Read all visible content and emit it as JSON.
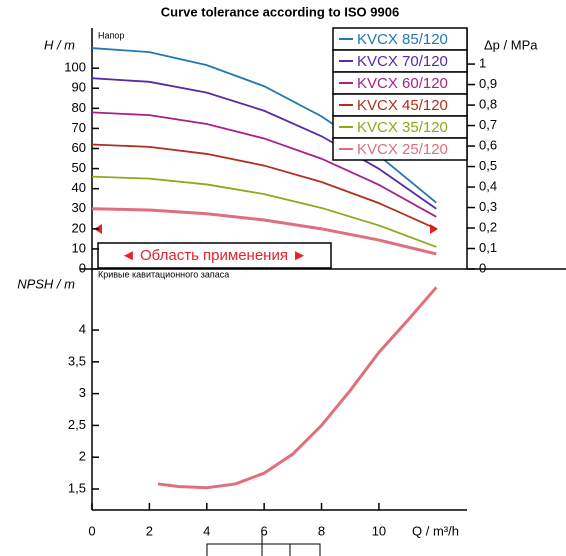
{
  "chart_data": [
    {
      "type": "line",
      "title": "Curve tolerance according to ISO 9906",
      "annotations": [
        "Напор",
        "◄ Область применения ►"
      ],
      "ylabel": "H / m",
      "y2label": "Δp / MPa",
      "legend": "upper right",
      "xlim": [
        0,
        13
      ],
      "ylim": [
        0,
        120
      ],
      "yticks": [
        0,
        10,
        20,
        30,
        40,
        50,
        60,
        70,
        80,
        90,
        100
      ],
      "y2lim": [
        0,
        1.176
      ],
      "y2ticks": [
        0,
        {
          "value": 0.1,
          "label": "0,1"
        },
        {
          "value": 0.2,
          "label": "0,2"
        },
        {
          "value": 0.3,
          "label": "0,3"
        },
        {
          "value": 0.4,
          "label": "0,4"
        },
        {
          "value": 0.5,
          "label": "0,5"
        },
        {
          "value": 0.6,
          "label": "0,6"
        },
        {
          "value": 0.7,
          "label": "0,7"
        },
        {
          "value": 0.8,
          "label": "0,8"
        },
        {
          "value": 0.9,
          "label": "0,9"
        },
        1
      ],
      "x": [
        0,
        2,
        4,
        6,
        8,
        10,
        12
      ],
      "series": [
        {
          "name": "KVCX 85/120",
          "color": "#2378ae",
          "values": [
            110,
            108,
            101.5,
            91,
            76,
            56.5,
            33
          ]
        },
        {
          "name": "KVCX 70/120",
          "color": "#5a2aa8",
          "values": [
            95,
            93.2,
            87.8,
            78.8,
            66.1,
            49.9,
            30
          ]
        },
        {
          "name": "KVCX 60/120",
          "color": "#a8208e",
          "values": [
            78,
            76.6,
            72.2,
            65,
            54.9,
            41.9,
            26
          ]
        },
        {
          "name": "KVCX 45/120",
          "color": "#b0301e",
          "values": [
            62,
            60.8,
            57.3,
            51.5,
            43.3,
            32.8,
            20
          ]
        },
        {
          "name": "KVCX 35/120",
          "color": "#8aaa1e",
          "values": [
            46,
            45,
            42.1,
            37.3,
            30.4,
            21.7,
            11
          ]
        },
        {
          "name": "KVCX 25/120",
          "color": "#e06e7e",
          "values": [
            30,
            29.4,
            27.5,
            24.4,
            20,
            14.4,
            7.5
          ]
        }
      ]
    },
    {
      "type": "line",
      "annotations": [
        "Кривые кавитационного запаса"
      ],
      "ylabel": "NPSH / m",
      "xlabel": "Q / m³/h",
      "xlim": [
        0,
        13
      ],
      "xticks": [
        0,
        2,
        4,
        6,
        8,
        10
      ],
      "ylim": [
        1.17,
        4.96
      ],
      "yticks": [
        {
          "value": 1.5,
          "label": "1,5"
        },
        2,
        {
          "value": 2.5,
          "label": "2,5"
        },
        3,
        {
          "value": 3.5,
          "label": "3,5"
        },
        4
      ],
      "x": [
        2.3,
        3,
        4,
        5,
        6,
        7,
        8,
        9,
        10,
        11,
        12
      ],
      "series": [
        {
          "color": "#e06e7e",
          "values": [
            1.58,
            1.54,
            1.52,
            1.58,
            1.75,
            2.05,
            2.5,
            3.05,
            3.65,
            4.15,
            4.67
          ]
        }
      ]
    }
  ]
}
